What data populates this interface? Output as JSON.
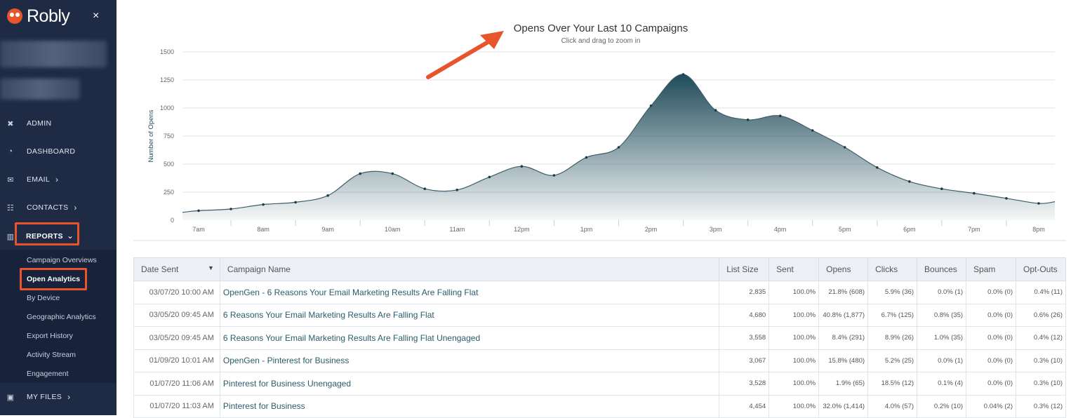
{
  "app": {
    "brand": "Robly",
    "close_glyph": "×"
  },
  "nav": {
    "admin": "ADMIN",
    "dashboard": "DASHBOARD",
    "email": "EMAIL",
    "contacts": "CONTACTS",
    "reports": "REPORTS",
    "my_files": "MY FILES",
    "submenu": [
      "Campaign Overviews",
      "Open Analytics",
      "By Device",
      "Geographic Analytics",
      "Export History",
      "Activity Stream",
      "Engagement"
    ]
  },
  "chart": {
    "title": "Opens Over Your Last 10 Campaigns",
    "subtitle": "Click and drag to zoom in",
    "ylabel": "Number of Opens"
  },
  "chart_data": {
    "type": "area",
    "title": "Opens Over Your Last 10 Campaigns",
    "ylabel": "Number of Opens",
    "ylim": [
      0,
      1500
    ],
    "yticks": [
      0,
      250,
      500,
      750,
      1000,
      1250,
      1500
    ],
    "xtick_labels": [
      "7am",
      "8am",
      "9am",
      "10am",
      "11am",
      "12pm",
      "1pm",
      "2pm",
      "3pm",
      "4pm",
      "5pm",
      "6pm",
      "7pm",
      "8pm"
    ],
    "x_hours": [
      6.75,
      7.0,
      7.5,
      8.0,
      8.5,
      9.0,
      9.5,
      10.0,
      10.5,
      11.0,
      11.5,
      12.0,
      12.5,
      13.0,
      13.5,
      14.0,
      14.5,
      15.0,
      15.5,
      16.0,
      16.5,
      17.0,
      17.5,
      18.0,
      18.5,
      19.0,
      19.5,
      20.0,
      20.25
    ],
    "values": [
      70,
      85,
      100,
      140,
      160,
      220,
      415,
      415,
      280,
      270,
      385,
      480,
      400,
      560,
      650,
      1020,
      1300,
      980,
      895,
      930,
      800,
      650,
      470,
      345,
      280,
      240,
      195,
      150,
      165
    ],
    "grid": true,
    "color": "#1f4b5a"
  },
  "table": {
    "headers": [
      "Date Sent",
      "Campaign Name",
      "List Size",
      "Sent",
      "Opens",
      "Clicks",
      "Bounces",
      "Spam",
      "Opt-Outs"
    ],
    "sort_caret": "▼",
    "rows": [
      [
        "03/07/20 10:00 AM",
        "OpenGen - 6 Reasons Your Email Marketing Results Are Falling Flat",
        "2,835",
        "100.0%",
        "21.8% (608)",
        "5.9% (36)",
        "0.0% (1)",
        "0.0% (0)",
        "0.4% (11)"
      ],
      [
        "03/05/20 09:45 AM",
        "6 Reasons Your Email Marketing Results Are Falling Flat",
        "4,680",
        "100.0%",
        "40.8% (1,877)",
        "6.7% (125)",
        "0.8% (35)",
        "0.0% (0)",
        "0.6% (26)"
      ],
      [
        "03/05/20 09:45 AM",
        "6 Reasons Your Email Marketing Results Are Falling Flat Unengaged",
        "3,558",
        "100.0%",
        "8.4% (291)",
        "8.9% (26)",
        "1.0% (35)",
        "0.0% (0)",
        "0.4% (12)"
      ],
      [
        "01/09/20 10:01 AM",
        "OpenGen - Pinterest for Business",
        "3,067",
        "100.0%",
        "15.8% (480)",
        "5.2% (25)",
        "0.0% (1)",
        "0.0% (0)",
        "0.3% (10)"
      ],
      [
        "01/07/20 11:06 AM",
        "Pinterest for Business Unengaged",
        "3,528",
        "100.0%",
        "1.9% (65)",
        "18.5% (12)",
        "0.1% (4)",
        "0.0% (0)",
        "0.3% (10)"
      ],
      [
        "01/07/20 11:03 AM",
        "Pinterest for Business",
        "4,454",
        "100.0%",
        "32.0% (1,414)",
        "4.0% (57)",
        "0.2% (10)",
        "0.04% (2)",
        "0.3% (12)"
      ]
    ]
  },
  "icons": {
    "admin": "tools-icon",
    "dashboard": "gauge-icon",
    "email": "envelope-icon",
    "contacts": "users-icon",
    "reports": "chart-icon",
    "my_files": "box-icon"
  },
  "colors": {
    "sidebar": "#1f2b45",
    "highlight": "#e8542b",
    "accent": "#1f4b5a"
  }
}
